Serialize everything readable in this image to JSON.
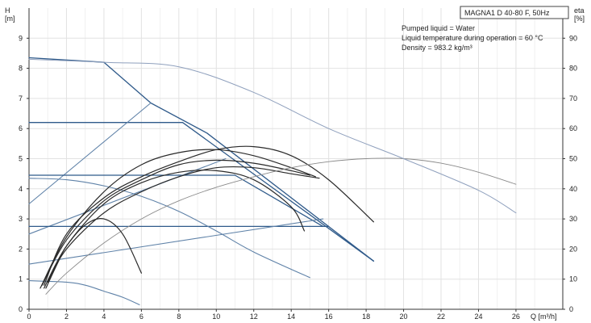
{
  "chart_data": {
    "type": "line",
    "title": "MAGNA1 D 40-80 F, 50Hz",
    "info_lines": [
      "Pumped liquid = Water",
      "Liquid temperature during operation = 60 °C",
      "Density = 983.2 kg/m³"
    ],
    "left_axis": {
      "label_line1": "H",
      "label_line2": "[m]",
      "range": [
        0,
        10
      ],
      "ticks": [
        "0",
        "1",
        "2",
        "3",
        "4",
        "5",
        "6",
        "7",
        "8",
        "9"
      ]
    },
    "right_axis": {
      "label_line1": "eta",
      "label_line2": "[%]",
      "range": [
        0,
        100
      ],
      "ticks": [
        "0",
        "10",
        "20",
        "30",
        "40",
        "50",
        "60",
        "70",
        "80",
        "90"
      ]
    },
    "x_axis": {
      "label": "Q [m³/h]",
      "range": [
        0,
        28.5
      ],
      "ticks": [
        "0",
        "2",
        "4",
        "6",
        "8",
        "10",
        "12",
        "14",
        "16",
        "18",
        "20",
        "22",
        "24",
        "26"
      ]
    },
    "grid": true,
    "colors": {
      "head": "#2f5a8a",
      "head_light": "#5f82a8",
      "efficiency": "#2a2a2a",
      "efficiency_light": "#8a8a8a",
      "power": "#8fa0bd"
    },
    "series": [
      {
        "kind": "head",
        "style": "head",
        "x": [
          0,
          4,
          6.5,
          9.5,
          18.4
        ],
        "y": [
          8.35,
          8.2,
          6.85,
          5.85,
          1.6
        ]
      },
      {
        "kind": "head",
        "style": "head",
        "x": [
          0,
          8.2,
          18.4
        ],
        "y": [
          6.2,
          6.2,
          1.6
        ]
      },
      {
        "kind": "head",
        "style": "head_light",
        "x": [
          0,
          6.5
        ],
        "y": [
          3.5,
          6.85
        ]
      },
      {
        "kind": "head",
        "style": "head",
        "x": [
          0,
          11,
          15.7
        ],
        "y": [
          4.45,
          4.45,
          2.75
        ]
      },
      {
        "kind": "head",
        "style": "head_light",
        "x": [
          0,
          10.5
        ],
        "y": [
          2.5,
          5.0
        ]
      },
      {
        "kind": "head",
        "style": "head",
        "x": [
          0,
          16
        ],
        "y": [
          2.75,
          2.75
        ]
      },
      {
        "kind": "head",
        "style": "head_light",
        "x": [
          0,
          15.7
        ],
        "y": [
          1.5,
          3.0
        ]
      },
      {
        "kind": "head",
        "style": "head_light",
        "x": [
          0,
          2,
          4,
          6,
          8,
          10,
          12,
          15
        ],
        "y": [
          4.35,
          4.3,
          4.1,
          3.75,
          3.25,
          2.6,
          1.9,
          1.05
        ]
      },
      {
        "kind": "head",
        "style": "head_light",
        "x": [
          0,
          2,
          3,
          4,
          5,
          5.9
        ],
        "y": [
          0.95,
          0.9,
          0.8,
          0.6,
          0.4,
          0.15
        ]
      },
      {
        "kind": "efficiency",
        "style": "efficiency",
        "x": [
          0.8,
          2,
          4,
          6,
          8,
          10,
          12,
          14,
          16,
          18.4
        ],
        "y": [
          0.8,
          2.5,
          3.7,
          4.4,
          4.9,
          5.3,
          5.4,
          5.1,
          4.3,
          2.9
        ]
      },
      {
        "kind": "efficiency",
        "style": "efficiency",
        "x": [
          0.6,
          2,
          4,
          6,
          8,
          10,
          12,
          14,
          15.3
        ],
        "y": [
          0.7,
          2.4,
          3.9,
          4.8,
          5.2,
          5.3,
          5.1,
          4.7,
          4.4
        ]
      },
      {
        "kind": "efficiency",
        "style": "efficiency",
        "x": [
          0.7,
          2,
          4,
          6,
          8,
          10,
          12,
          14,
          15
        ],
        "y": [
          0.8,
          2.3,
          3.6,
          4.3,
          4.8,
          4.95,
          4.85,
          4.6,
          4.45
        ]
      },
      {
        "kind": "efficiency",
        "style": "efficiency",
        "x": [
          1.0,
          2,
          4,
          6,
          8,
          10,
          12,
          14,
          15.5
        ],
        "y": [
          0.9,
          2.0,
          3.2,
          3.9,
          4.4,
          4.7,
          4.7,
          4.5,
          4.35
        ]
      },
      {
        "kind": "efficiency",
        "style": "efficiency",
        "x": [
          0.8,
          2,
          4,
          6,
          8,
          10,
          12,
          14,
          14.7
        ],
        "y": [
          0.7,
          2.1,
          3.5,
          4.2,
          4.55,
          4.6,
          4.3,
          3.4,
          2.6
        ]
      },
      {
        "kind": "efficiency",
        "style": "efficiency_light",
        "x": [
          0.9,
          2,
          4,
          6,
          8,
          10,
          12,
          14,
          16,
          18,
          20,
          22,
          24,
          26
        ],
        "y": [
          0.5,
          1.2,
          2.2,
          3.0,
          3.6,
          4.05,
          4.4,
          4.7,
          4.9,
          5.0,
          5.0,
          4.85,
          4.55,
          4.15
        ]
      },
      {
        "kind": "efficiency",
        "style": "efficiency",
        "x": [
          0.9,
          1.5,
          2,
          3,
          4,
          5,
          6
        ],
        "y": [
          0.7,
          1.5,
          2.1,
          2.8,
          3.0,
          2.5,
          1.2
        ]
      },
      {
        "kind": "power",
        "style": "power",
        "x": [
          0,
          4,
          8,
          12,
          16,
          20,
          24,
          26
        ],
        "y": [
          8.3,
          8.2,
          8.05,
          7.2,
          6.0,
          5.0,
          3.95,
          3.2
        ]
      }
    ]
  }
}
